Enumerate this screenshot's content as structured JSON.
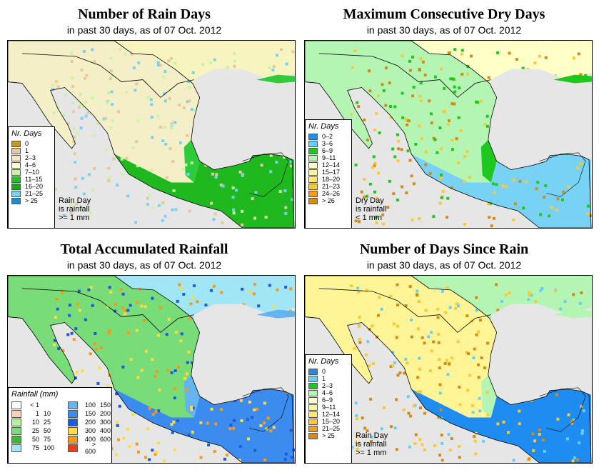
{
  "colors": {
    "land": "#f5f0c0",
    "water": "#e6e6e6",
    "border": "#000000",
    "greenDark": "#22bb22",
    "greenLight": "#aaeeaa",
    "blueLight": "#88ddee",
    "blueMid": "#3366ee",
    "brown": "#cc8800",
    "yellow": "#ffdd44"
  },
  "panels": [
    {
      "id": "rain-days",
      "title": "Number of Rain Days",
      "subtitle": "in past 30 days, as of  07 Oct. 2012",
      "legend_title": "Nr. Days",
      "legend": [
        {
          "label": "0",
          "color": "#c8961e"
        },
        {
          "label": "1",
          "color": "#e6c8a0"
        },
        {
          "label": "2–3",
          "color": "#f5e6c8"
        },
        {
          "label": "4–6",
          "color": "#ffffc8"
        },
        {
          "label": "7–10",
          "color": "#c8f5a0"
        },
        {
          "label": "11–15",
          "color": "#1ec81e"
        },
        {
          "label": "16–20",
          "color": "#14aa14"
        },
        {
          "label": "21–25",
          "color": "#78d2f5"
        },
        {
          "label": "> 25",
          "color": "#1e8cd2"
        }
      ],
      "note": [
        "Rain Day",
        "is rainfall",
        ">= 1 mm"
      ]
    },
    {
      "id": "dry-days",
      "title": "Maximum Consecutive Dry Days",
      "subtitle": "in past 30 days, as of  07 Oct. 2012",
      "legend_title": "Nr. Days",
      "legend": [
        {
          "label": "0–2",
          "color": "#1e8cf0"
        },
        {
          "label": "3–6",
          "color": "#64d2f5"
        },
        {
          "label": "6–9",
          "color": "#1ec81e"
        },
        {
          "label": "9–11",
          "color": "#b4f5b4"
        },
        {
          "label": "12–14",
          "color": "#ffffc8"
        },
        {
          "label": "15–17",
          "color": "#fff596"
        },
        {
          "label": "18–20",
          "color": "#ffe664"
        },
        {
          "label": "21–23",
          "color": "#ffc832"
        },
        {
          "label": "24–26",
          "color": "#f0a014"
        },
        {
          "label": "> 26",
          "color": "#d28c14"
        }
      ],
      "note": [
        "Dry Day",
        "is rainfall",
        "< 1 mm"
      ]
    },
    {
      "id": "total-rain",
      "title": "Total Accumulated Rainfall",
      "subtitle": "in past 30 days, as of  07 Oct. 2012",
      "legend_title": "Rainfall (mm)",
      "legend_left": [
        {
          "a": "< 1",
          "b": "",
          "color": "#ffffff"
        },
        {
          "a": "1",
          "b": "10",
          "color": "#f5d2b4"
        },
        {
          "a": "10",
          "b": "25",
          "color": "#b4f0a0"
        },
        {
          "a": "25",
          "b": "50",
          "color": "#78dc78"
        },
        {
          "a": "50",
          "b": "75",
          "color": "#32be32"
        },
        {
          "a": "75",
          "b": "100",
          "color": "#a0e6f5"
        }
      ],
      "legend_right": [
        {
          "a": "100",
          "b": "150",
          "color": "#64b4f0"
        },
        {
          "a": "150",
          "b": "200",
          "color": "#3c8cf0"
        },
        {
          "a": "200",
          "b": "300",
          "color": "#1e5adc"
        },
        {
          "a": "300",
          "b": "400",
          "color": "#ffdc3c"
        },
        {
          "a": "400",
          "b": "600",
          "color": "#ff9614"
        },
        {
          "a": "> 600",
          "b": "",
          "color": "#f03c14"
        }
      ]
    },
    {
      "id": "days-since-rain",
      "title": "Number of Days Since Rain",
      "subtitle": "in past 30 days, as of  07 Oct. 2012",
      "legend_title": "Nr. Days",
      "legend": [
        {
          "label": "0",
          "color": "#1e8cf0"
        },
        {
          "label": "1",
          "color": "#64d2f5"
        },
        {
          "label": "2–3",
          "color": "#1ec81e"
        },
        {
          "label": "4–6",
          "color": "#b4f5b4"
        },
        {
          "label": "6–9",
          "color": "#ffffc8"
        },
        {
          "label": "9–11",
          "color": "#fff596"
        },
        {
          "label": "12–14",
          "color": "#ffe664"
        },
        {
          "label": "15–20",
          "color": "#ffc832"
        },
        {
          "label": "21–25",
          "color": "#f0a014"
        },
        {
          "label": "> 25",
          "color": "#d28c14"
        }
      ],
      "note": [
        "Rain Day",
        "is rainfall",
        ">= 1 mm"
      ]
    }
  ]
}
